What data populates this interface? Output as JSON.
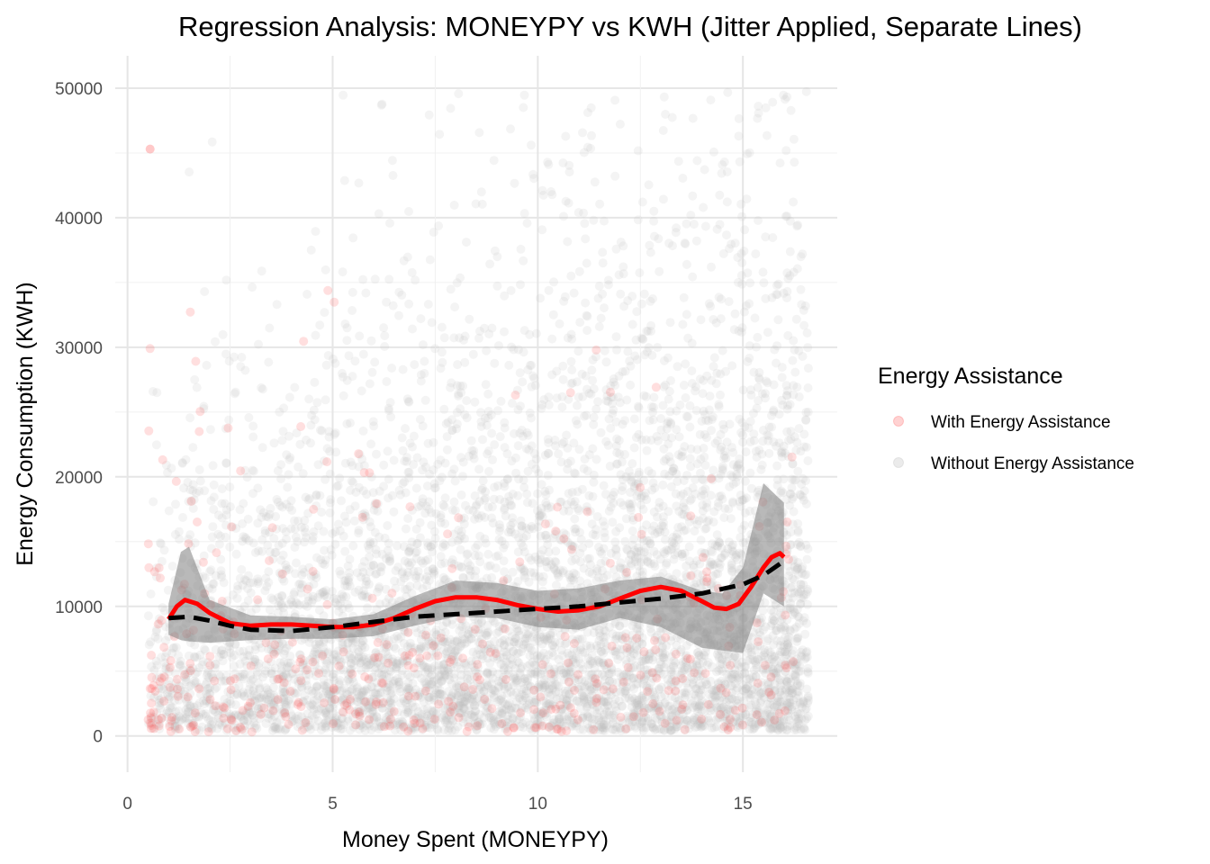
{
  "chart_data": {
    "type": "scatter",
    "title": "Regression Analysis: MONEYPY vs KWH (Jitter Applied, Separate Lines)",
    "xlabel": "Money Spent (MONEYPY)",
    "ylabel": "Energy Consumption (KWH)",
    "xlim": [
      -0.3,
      17.3
    ],
    "ylim": [
      -2800,
      52500
    ],
    "x_ticks": [
      0,
      5,
      10,
      15
    ],
    "x_tick_labels": [
      "0",
      "5",
      "10",
      "15"
    ],
    "y_ticks": [
      0,
      10000,
      20000,
      30000,
      40000,
      50000
    ],
    "y_tick_labels": [
      "0",
      "10000",
      "20000",
      "30000",
      "40000",
      "50000"
    ],
    "grid": true,
    "legend": {
      "title": "Energy Assistance",
      "placement": "right",
      "entries": [
        {
          "label": "With Energy Assistance",
          "color": "#ff4d4d"
        },
        {
          "label": "Without Energy Assistance",
          "color": "#bdbdbd"
        }
      ]
    },
    "series": [
      {
        "name": "With Energy Assistance",
        "color": "#ff4d4d",
        "kind": "points",
        "opacity": 0.18,
        "approx_count": 400,
        "x_range": [
          0.5,
          16.3
        ],
        "typical_kwh": [
          500,
          25000
        ],
        "max_kwh": 45300
      },
      {
        "name": "Without Energy Assistance",
        "color": "#bdbdbd",
        "kind": "points",
        "opacity": 0.17,
        "approx_count": 6000,
        "x_range": [
          0.5,
          16.6
        ],
        "typical_kwh": [
          0,
          30000
        ],
        "max_kwh": 49900
      }
    ],
    "smooth_lines": [
      {
        "series": "With Energy Assistance",
        "color": "#ff0000",
        "style": "solid",
        "points": [
          [
            1.0,
            9000
          ],
          [
            1.2,
            10000
          ],
          [
            1.4,
            10500
          ],
          [
            1.7,
            10200
          ],
          [
            2.0,
            9500
          ],
          [
            2.5,
            8700
          ],
          [
            3.0,
            8500
          ],
          [
            3.5,
            8600
          ],
          [
            4.0,
            8600
          ],
          [
            4.5,
            8500
          ],
          [
            5.0,
            8400
          ],
          [
            5.5,
            8400
          ],
          [
            6.0,
            8600
          ],
          [
            6.5,
            9100
          ],
          [
            7.0,
            9800
          ],
          [
            7.5,
            10400
          ],
          [
            8.0,
            10700
          ],
          [
            8.5,
            10700
          ],
          [
            9.0,
            10500
          ],
          [
            9.5,
            10100
          ],
          [
            10.0,
            9800
          ],
          [
            10.5,
            9600
          ],
          [
            11.0,
            9700
          ],
          [
            11.5,
            10000
          ],
          [
            12.0,
            10600
          ],
          [
            12.5,
            11200
          ],
          [
            13.0,
            11500
          ],
          [
            13.5,
            11200
          ],
          [
            14.0,
            10400
          ],
          [
            14.3,
            9900
          ],
          [
            14.6,
            9800
          ],
          [
            14.9,
            10200
          ],
          [
            15.2,
            11500
          ],
          [
            15.5,
            13000
          ],
          [
            15.7,
            13800
          ],
          [
            15.9,
            14100
          ],
          [
            16.0,
            13800
          ]
        ],
        "band": [
          [
            1.0,
            7800,
            10200
          ],
          [
            1.3,
            7400,
            14200
          ],
          [
            1.5,
            7300,
            14600
          ],
          [
            2.0,
            7200,
            10500
          ],
          [
            3.0,
            7400,
            9300
          ],
          [
            4.0,
            7500,
            9200
          ],
          [
            5.0,
            7500,
            9000
          ],
          [
            6.0,
            7700,
            9400
          ],
          [
            7.0,
            8500,
            10800
          ],
          [
            8.0,
            9200,
            12000
          ],
          [
            9.0,
            9100,
            11800
          ],
          [
            10.0,
            8400,
            11200
          ],
          [
            11.0,
            8200,
            11400
          ],
          [
            12.0,
            9100,
            12000
          ],
          [
            13.0,
            8400,
            12300
          ],
          [
            14.0,
            6800,
            11200
          ],
          [
            14.5,
            6600,
            11000
          ],
          [
            15.0,
            6400,
            13000
          ],
          [
            15.5,
            11000,
            19500
          ],
          [
            16.0,
            10000,
            18000
          ]
        ]
      },
      {
        "series": "Without Energy Assistance",
        "color": "#000000",
        "style": "dashed",
        "points": [
          [
            1.0,
            9100
          ],
          [
            1.5,
            9200
          ],
          [
            2.0,
            8900
          ],
          [
            2.5,
            8500
          ],
          [
            3.0,
            8200
          ],
          [
            4.0,
            8100
          ],
          [
            5.0,
            8400
          ],
          [
            6.0,
            8800
          ],
          [
            7.0,
            9200
          ],
          [
            8.0,
            9400
          ],
          [
            9.0,
            9600
          ],
          [
            10.0,
            9800
          ],
          [
            11.0,
            10000
          ],
          [
            12.0,
            10300
          ],
          [
            13.0,
            10600
          ],
          [
            14.0,
            11000
          ],
          [
            15.0,
            11700
          ],
          [
            15.5,
            12400
          ],
          [
            16.0,
            13500
          ]
        ]
      }
    ]
  }
}
